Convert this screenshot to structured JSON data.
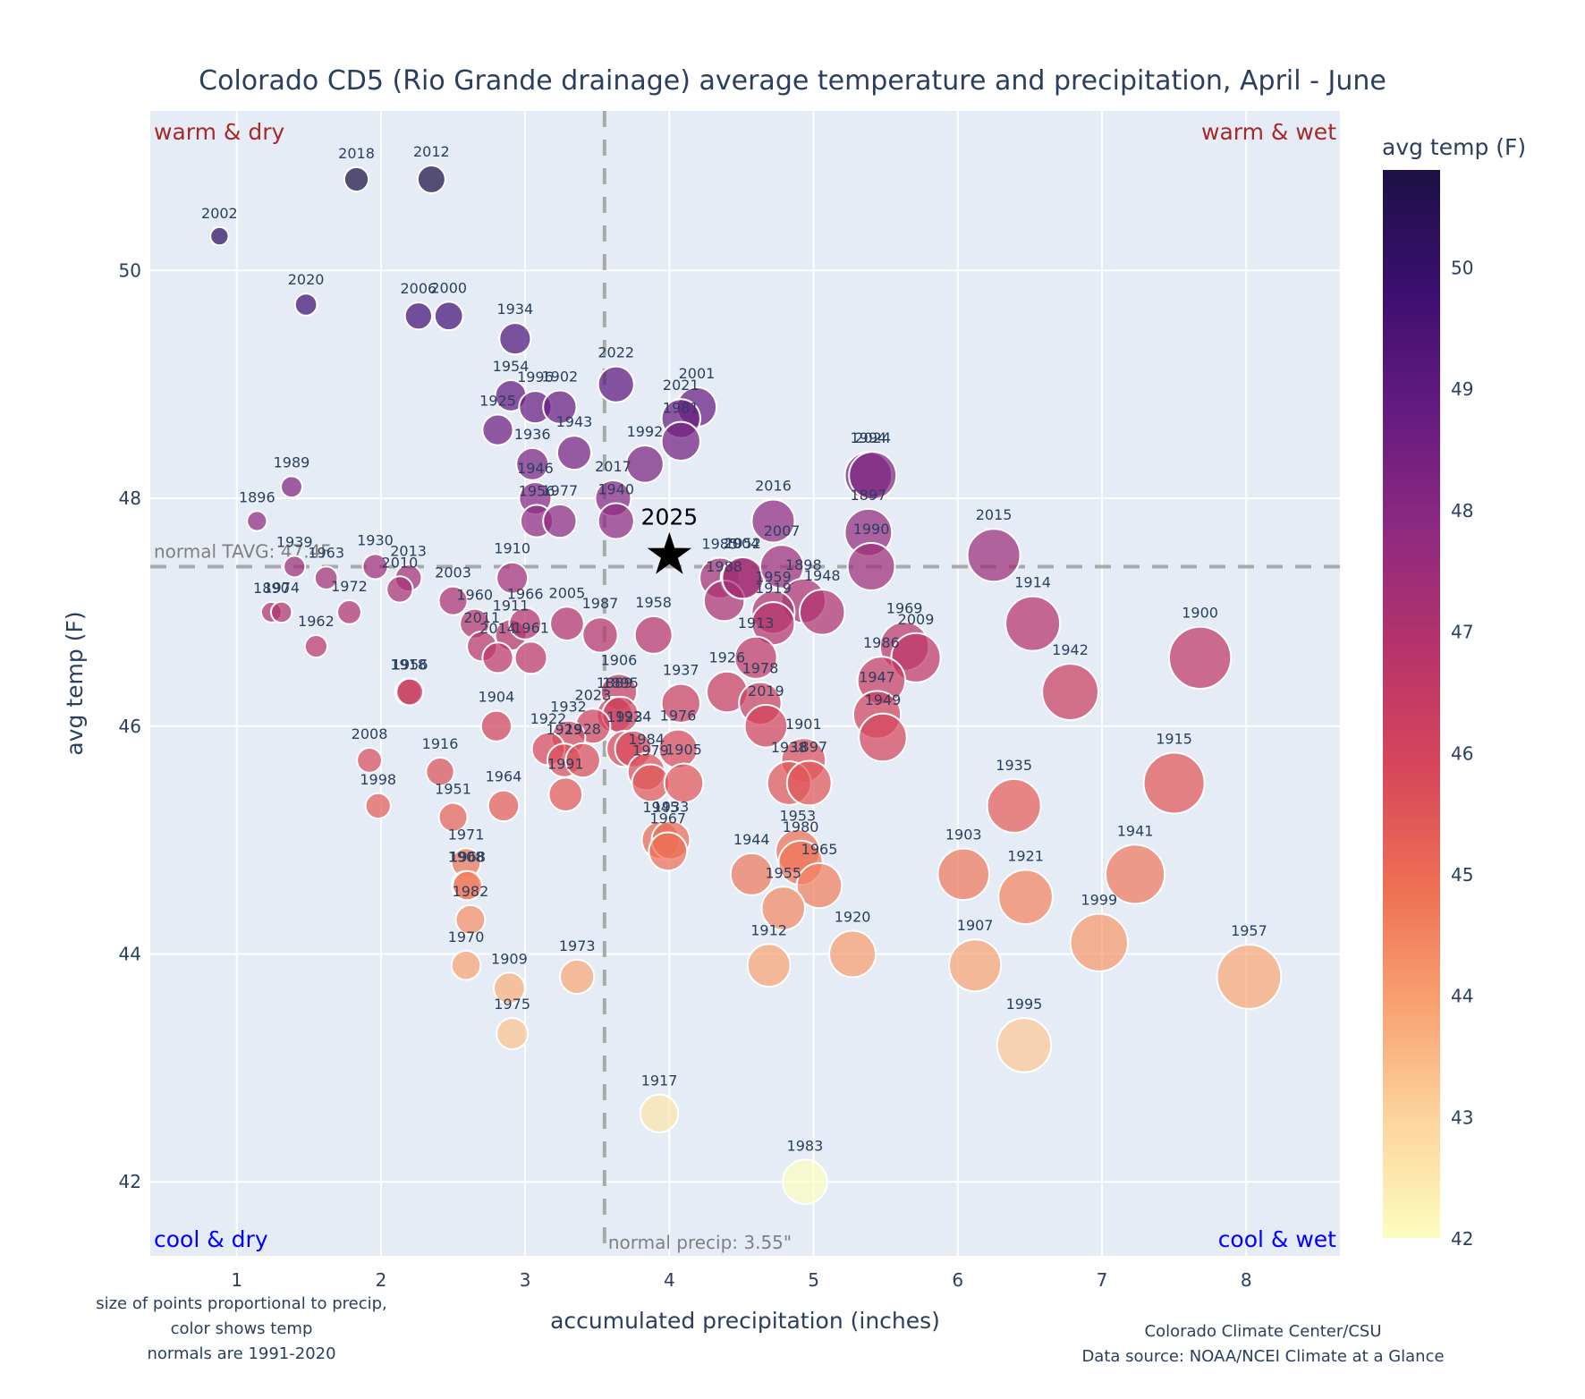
{
  "chart_data": {
    "type": "scatter",
    "title": "Colorado CD5 (Rio Grande drainage) average temperature and precipitation, April - June",
    "xlabel": "accumulated precipitation (inches)",
    "ylabel": "avg temp (F)",
    "xlim": [
      0.4,
      8.65
    ],
    "ylim": [
      41.35,
      51.4
    ],
    "x_ticks": [
      1,
      2,
      3,
      4,
      5,
      6,
      7,
      8
    ],
    "y_ticks": [
      42,
      44,
      46,
      48,
      50
    ],
    "grid": true,
    "colorbar": {
      "title": "avg temp (F)",
      "range": [
        42,
        50.8
      ],
      "ticks": [
        42,
        43,
        44,
        45,
        46,
        47,
        48,
        49,
        50
      ],
      "colorscale": [
        "#fcfdbf",
        "#fdd49e",
        "#f8a070",
        "#ed6d54",
        "#d6455b",
        "#b5336b",
        "#8c2981",
        "#641a80",
        "#3b0f70",
        "#1c1044"
      ]
    },
    "reference_lines": {
      "normal_tavg": 47.4,
      "normal_tavg_label": "normal TAVG: 47.4F",
      "normal_precip": 3.55,
      "normal_precip_label": "normal precip: 3.55\""
    },
    "quadrant_labels": {
      "top_left": "warm & dry",
      "top_right": "warm & wet",
      "bottom_left": "cool & dry",
      "bottom_right": "cool & wet"
    },
    "highlight": {
      "year": "2025",
      "precip": 4.0,
      "temp": 47.5,
      "marker": "star"
    },
    "notes": {
      "left": [
        "size of points proportional to precip,",
        "color shows temp",
        "normals are 1991-2020"
      ],
      "right": [
        "Colorado Climate Center/CSU",
        "Data source: NOAA/NCEI Climate at a Glance"
      ]
    },
    "points": [
      {
        "year": "2002",
        "precip": 0.88,
        "temp": 50.3
      },
      {
        "year": "2018",
        "precip": 1.83,
        "temp": 50.8
      },
      {
        "year": "2012",
        "precip": 2.35,
        "temp": 50.8
      },
      {
        "year": "2020",
        "precip": 1.48,
        "temp": 49.7
      },
      {
        "year": "2006",
        "precip": 2.26,
        "temp": 49.6
      },
      {
        "year": "2000",
        "precip": 2.47,
        "temp": 49.6
      },
      {
        "year": "1934",
        "precip": 2.93,
        "temp": 49.4
      },
      {
        "year": "1954",
        "precip": 2.9,
        "temp": 48.9
      },
      {
        "year": "1996",
        "precip": 3.07,
        "temp": 48.8
      },
      {
        "year": "1902",
        "precip": 3.24,
        "temp": 48.8
      },
      {
        "year": "1925",
        "precip": 2.81,
        "temp": 48.6
      },
      {
        "year": "1943",
        "precip": 3.34,
        "temp": 48.4
      },
      {
        "year": "1936",
        "precip": 3.05,
        "temp": 48.3
      },
      {
        "year": "2022",
        "precip": 3.63,
        "temp": 49.0
      },
      {
        "year": "2001",
        "precip": 4.19,
        "temp": 48.8
      },
      {
        "year": "2021",
        "precip": 4.08,
        "temp": 48.7
      },
      {
        "year": "1981",
        "precip": 4.08,
        "temp": 48.5
      },
      {
        "year": "1992",
        "precip": 3.83,
        "temp": 48.3
      },
      {
        "year": "1946",
        "precip": 3.07,
        "temp": 48.0
      },
      {
        "year": "1956",
        "precip": 3.08,
        "temp": 47.8
      },
      {
        "year": "1977",
        "precip": 3.24,
        "temp": 47.8
      },
      {
        "year": "2017",
        "precip": 3.61,
        "temp": 48.0
      },
      {
        "year": "1940",
        "precip": 3.63,
        "temp": 47.8
      },
      {
        "year": "1989",
        "precip": 1.38,
        "temp": 48.1
      },
      {
        "year": "1896",
        "precip": 1.14,
        "temp": 47.8
      },
      {
        "year": "1939",
        "precip": 1.4,
        "temp": 47.4
      },
      {
        "year": "1963",
        "precip": 1.62,
        "temp": 47.3
      },
      {
        "year": "1930",
        "precip": 1.96,
        "temp": 47.4
      },
      {
        "year": "2013",
        "precip": 2.19,
        "temp": 47.3
      },
      {
        "year": "2010",
        "precip": 2.13,
        "temp": 47.2
      },
      {
        "year": "1890",
        "precip": 1.24,
        "temp": 47.0
      },
      {
        "year": "1974",
        "precip": 1.31,
        "temp": 47.0
      },
      {
        "year": "1972",
        "precip": 1.78,
        "temp": 47.0
      },
      {
        "year": "1962",
        "precip": 1.55,
        "temp": 46.7
      },
      {
        "year": "2003",
        "precip": 2.5,
        "temp": 47.1
      },
      {
        "year": "1910",
        "precip": 2.91,
        "temp": 47.3
      },
      {
        "year": "1960",
        "precip": 2.65,
        "temp": 46.9
      },
      {
        "year": "1911",
        "precip": 2.9,
        "temp": 46.8
      },
      {
        "year": "1966",
        "precip": 3.0,
        "temp": 46.9
      },
      {
        "year": "2005",
        "precip": 3.29,
        "temp": 46.9
      },
      {
        "year": "2011",
        "precip": 2.7,
        "temp": 46.7
      },
      {
        "year": "2014",
        "precip": 2.81,
        "temp": 46.6
      },
      {
        "year": "1961",
        "precip": 3.04,
        "temp": 46.6
      },
      {
        "year": "1987",
        "precip": 3.52,
        "temp": 46.8
      },
      {
        "year": "1958",
        "precip": 3.89,
        "temp": 46.8
      },
      {
        "year": "1918",
        "precip": 2.19,
        "temp": 46.3
      },
      {
        "year": "1956b",
        "label": "1956",
        "precip": 2.2,
        "temp": 46.3
      },
      {
        "year": "1904",
        "precip": 2.8,
        "temp": 46.0
      },
      {
        "year": "1906",
        "precip": 3.65,
        "temp": 46.3
      },
      {
        "year": "1889",
        "precip": 3.62,
        "temp": 46.1
      },
      {
        "year": "1895",
        "precip": 3.66,
        "temp": 46.1
      },
      {
        "year": "2023",
        "precip": 3.47,
        "temp": 46.0
      },
      {
        "year": "1932",
        "precip": 3.3,
        "temp": 45.9
      },
      {
        "year": "1922",
        "precip": 3.16,
        "temp": 45.8
      },
      {
        "year": "1929",
        "precip": 3.27,
        "temp": 45.7
      },
      {
        "year": "1928",
        "precip": 3.4,
        "temp": 45.7
      },
      {
        "year": "1991",
        "precip": 3.28,
        "temp": 45.4
      },
      {
        "year": "1923",
        "precip": 3.69,
        "temp": 45.8
      },
      {
        "year": "1924",
        "precip": 3.75,
        "temp": 45.8
      },
      {
        "year": "1937",
        "precip": 4.08,
        "temp": 46.2
      },
      {
        "year": "1976",
        "precip": 4.06,
        "temp": 45.8
      },
      {
        "year": "1984",
        "precip": 3.84,
        "temp": 45.6
      },
      {
        "year": "1979",
        "precip": 3.87,
        "temp": 45.5
      },
      {
        "year": "1905",
        "precip": 4.1,
        "temp": 45.5
      },
      {
        "year": "1945",
        "precip": 3.94,
        "temp": 45.0
      },
      {
        "year": "1933",
        "precip": 4.01,
        "temp": 45.0
      },
      {
        "year": "1967",
        "precip": 3.99,
        "temp": 44.9
      },
      {
        "year": "2008",
        "precip": 1.92,
        "temp": 45.7
      },
      {
        "year": "1998",
        "precip": 1.98,
        "temp": 45.3
      },
      {
        "year": "1916",
        "precip": 2.41,
        "temp": 45.6
      },
      {
        "year": "1951",
        "precip": 2.5,
        "temp": 45.2
      },
      {
        "year": "1964",
        "precip": 2.85,
        "temp": 45.3
      },
      {
        "year": "1971",
        "precip": 2.59,
        "temp": 44.8
      },
      {
        "year": "1908",
        "precip": 2.59,
        "temp": 44.6
      },
      {
        "year": "1968",
        "precip": 2.6,
        "temp": 44.6
      },
      {
        "year": "1982",
        "precip": 2.62,
        "temp": 44.3
      },
      {
        "year": "1970",
        "precip": 2.59,
        "temp": 43.9
      },
      {
        "year": "1909",
        "precip": 2.89,
        "temp": 43.7
      },
      {
        "year": "1975",
        "precip": 2.91,
        "temp": 43.3
      },
      {
        "year": "1973",
        "precip": 3.36,
        "temp": 43.8
      },
      {
        "year": "1917",
        "precip": 3.93,
        "temp": 42.6
      },
      {
        "year": "1983",
        "precip": 4.94,
        "temp": 42.0
      },
      {
        "year": "1985",
        "precip": 4.35,
        "temp": 47.3
      },
      {
        "year": "2004",
        "precip": 4.5,
        "temp": 47.3
      },
      {
        "year": "1988",
        "precip": 4.38,
        "temp": 47.1
      },
      {
        "year": "1952",
        "precip": 4.51,
        "temp": 47.3
      },
      {
        "year": "2016",
        "precip": 4.72,
        "temp": 47.8
      },
      {
        "year": "2007",
        "precip": 4.78,
        "temp": 47.4
      },
      {
        "year": "1898",
        "precip": 4.93,
        "temp": 47.1
      },
      {
        "year": "1948",
        "precip": 5.06,
        "temp": 47.0
      },
      {
        "year": "1959",
        "precip": 4.72,
        "temp": 47.0
      },
      {
        "year": "1919",
        "precip": 4.72,
        "temp": 46.9
      },
      {
        "year": "1913",
        "precip": 4.6,
        "temp": 46.6
      },
      {
        "year": "1926",
        "precip": 4.4,
        "temp": 46.3
      },
      {
        "year": "1978",
        "precip": 4.63,
        "temp": 46.2
      },
      {
        "year": "2019",
        "precip": 4.67,
        "temp": 46.0
      },
      {
        "year": "1901",
        "precip": 4.93,
        "temp": 45.7
      },
      {
        "year": "1938",
        "precip": 4.83,
        "temp": 45.5
      },
      {
        "year": "1897b",
        "label": "1897",
        "precip": 4.97,
        "temp": 45.5
      },
      {
        "year": "1953",
        "precip": 4.89,
        "temp": 44.9
      },
      {
        "year": "1980",
        "precip": 4.91,
        "temp": 44.8
      },
      {
        "year": "1965",
        "precip": 5.04,
        "temp": 44.6
      },
      {
        "year": "1944",
        "precip": 4.57,
        "temp": 44.7
      },
      {
        "year": "1955",
        "precip": 4.79,
        "temp": 44.4
      },
      {
        "year": "1912",
        "precip": 4.69,
        "temp": 43.9
      },
      {
        "year": "1920",
        "precip": 5.27,
        "temp": 44.0
      },
      {
        "year": "1994",
        "precip": 5.38,
        "temp": 48.2
      },
      {
        "year": "2024",
        "precip": 5.41,
        "temp": 48.2
      },
      {
        "year": "1897",
        "precip": 5.38,
        "temp": 47.7
      },
      {
        "year": "1990",
        "precip": 5.4,
        "temp": 47.4
      },
      {
        "year": "1969",
        "precip": 5.63,
        "temp": 46.7
      },
      {
        "year": "2009",
        "precip": 5.71,
        "temp": 46.6
      },
      {
        "year": "1986",
        "precip": 5.47,
        "temp": 46.4
      },
      {
        "year": "1947",
        "precip": 5.44,
        "temp": 46.1
      },
      {
        "year": "1949",
        "precip": 5.48,
        "temp": 45.9
      },
      {
        "year": "2015",
        "precip": 6.25,
        "temp": 47.5
      },
      {
        "year": "1914",
        "precip": 6.52,
        "temp": 46.9
      },
      {
        "year": "1942",
        "precip": 6.78,
        "temp": 46.3
      },
      {
        "year": "1900",
        "precip": 7.68,
        "temp": 46.6
      },
      {
        "year": "1915",
        "precip": 7.5,
        "temp": 45.5
      },
      {
        "year": "1935",
        "precip": 6.39,
        "temp": 45.3
      },
      {
        "year": "1903",
        "precip": 6.04,
        "temp": 44.7
      },
      {
        "year": "1921",
        "precip": 6.47,
        "temp": 44.5
      },
      {
        "year": "1941",
        "precip": 7.23,
        "temp": 44.7
      },
      {
        "year": "1907",
        "precip": 6.12,
        "temp": 43.9
      },
      {
        "year": "1999",
        "precip": 6.98,
        "temp": 44.1
      },
      {
        "year": "1957",
        "precip": 8.02,
        "temp": 43.8
      },
      {
        "year": "1995",
        "precip": 6.46,
        "temp": 43.2
      }
    ]
  }
}
